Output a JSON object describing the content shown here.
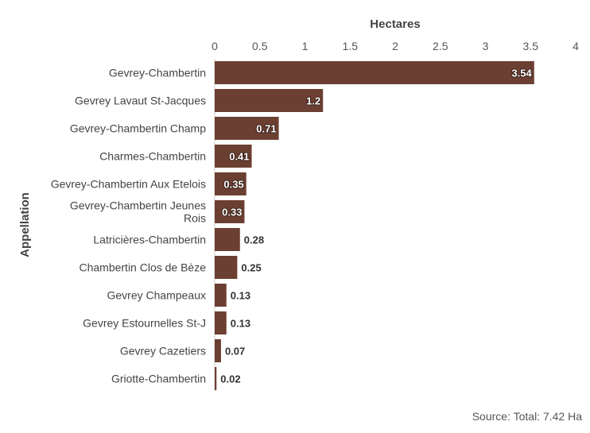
{
  "chart_data": {
    "type": "bar",
    "orientation": "horizontal",
    "xlabel": "Hectares",
    "ylabel": "Appellation",
    "xlim": [
      0,
      4
    ],
    "xticks": [
      "0",
      "0.5",
      "1",
      "1.5",
      "2",
      "2.5",
      "3",
      "3.5",
      "4"
    ],
    "x_axis_position": "top",
    "grid": false,
    "bar_color": "#6b3f31",
    "categories": [
      [
        "Gevrey-Chambertin"
      ],
      [
        "Gevrey Lavaut St-Jacques"
      ],
      [
        "Gevrey-Chambertin Champ"
      ],
      [
        "Charmes-Chambertin"
      ],
      [
        "Gevrey-Chambertin Aux Etelois"
      ],
      [
        "Gevrey-Chambertin Jeunes",
        "Rois"
      ],
      [
        "Latricières-Chambertin"
      ],
      [
        "Chambertin Clos de Bèze"
      ],
      [
        "Gevrey Champeaux"
      ],
      [
        "Gevrey Estournelles St-J"
      ],
      [
        "Gevrey Cazetiers"
      ],
      [
        "Griotte-Chambertin"
      ]
    ],
    "values": [
      3.54,
      1.2,
      0.71,
      0.41,
      0.35,
      0.33,
      0.28,
      0.25,
      0.13,
      0.13,
      0.07,
      0.02
    ],
    "data_labels": [
      "3.54",
      "1.2",
      "0.71",
      "0.41",
      "0.35",
      "0.33",
      "0.28",
      "0.25",
      "0.13",
      "0.13",
      "0.07",
      "0.02"
    ]
  },
  "footer": {
    "source": "Source: Total: 7.42 Ha"
  }
}
